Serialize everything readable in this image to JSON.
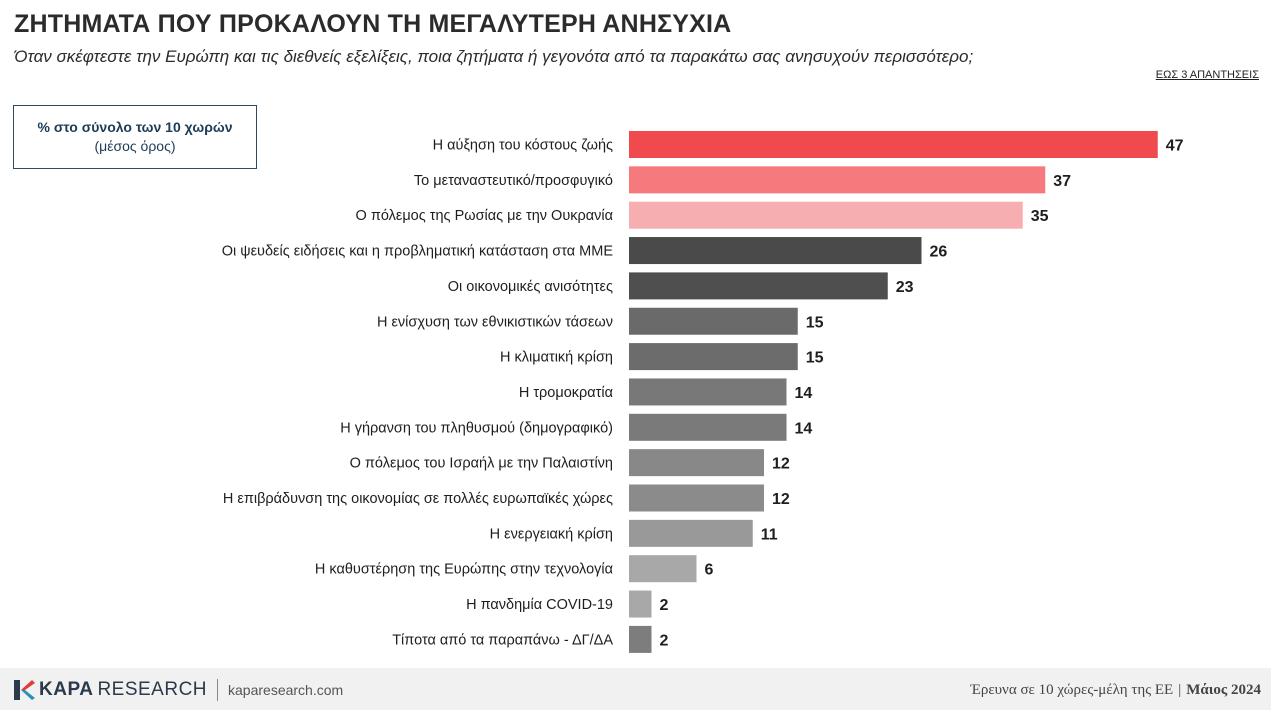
{
  "header": {
    "title": "ΖΗΤΗΜΑΤΑ ΠΟΥ ΠΡΟΚΑΛΟΥΝ ΤΗ ΜΕΓΑΛΥΤΕΡΗ ΑΝΗΣΥΧΙΑ",
    "subtitle": "Όταν σκέφτεστε την Ευρώπη και τις διεθνείς εξελίξεις, ποια ζητήματα ή γεγονότα από τα παρακάτω σας ανησυχούν περισσότερο;",
    "note": "ΕΩΣ 3 ΑΠΑΝΤΗΣΕΙΣ"
  },
  "legend": {
    "line1": "% στο σύνολο των 10 χωρών",
    "line2": "(μέσος όρος)"
  },
  "chart_data": {
    "type": "bar",
    "orientation": "horizontal",
    "categories": [
      "Η αύξηση του κόστους ζωής",
      "Το μεταναστευτικό/προσφυγικό",
      "Ο πόλεμος της Ρωσίας με την Ουκρανία",
      "Οι ψευδείς ειδήσεις και η προβληματική κατάσταση στα ΜΜΕ",
      "Οι οικονομικές ανισότητες",
      "Η ενίσχυση των εθνικιστικών τάσεων",
      "Η κλιματική κρίση",
      "Η τρομοκρατία",
      "Η γήρανση του πληθυσμού (δημογραφικό)",
      "Ο πόλεμος του Ισραήλ με την Παλαιστίνη",
      "Η επιβράδυνση της οικονομίας σε πολλές ευρωπαϊκές χώρες",
      "Η ενεργειακή κρίση",
      "Η καθυστέρηση της Ευρώπης στην τεχνολογία",
      "Η πανδημία COVID-19",
      "Τίποτα από τα παραπάνω - ΔΓ/ΔΑ"
    ],
    "values": [
      47,
      37,
      35,
      26,
      23,
      15,
      15,
      14,
      14,
      12,
      12,
      11,
      6,
      2,
      2
    ],
    "colors": [
      "#f04a4f",
      "#f5797d",
      "#f7aeb0",
      "#4a4a4a",
      "#4f4f4f",
      "#6a6a6a",
      "#6c6c6c",
      "#787878",
      "#7a7a7a",
      "#888888",
      "#8b8b8b",
      "#999999",
      "#a8a8a8",
      "#a8a8a8",
      "#7d7d7d"
    ],
    "xlim": [
      0,
      47
    ],
    "grid": false,
    "legend": "none"
  },
  "footer": {
    "brand_bold": "KAPA",
    "brand_light": "RESEARCH",
    "url": "kaparesearch.com",
    "survey": "Έρευνα σε 10 χώρες-μέλη της ΕΕ",
    "separator": "|",
    "date": "Μάιος 2024"
  }
}
